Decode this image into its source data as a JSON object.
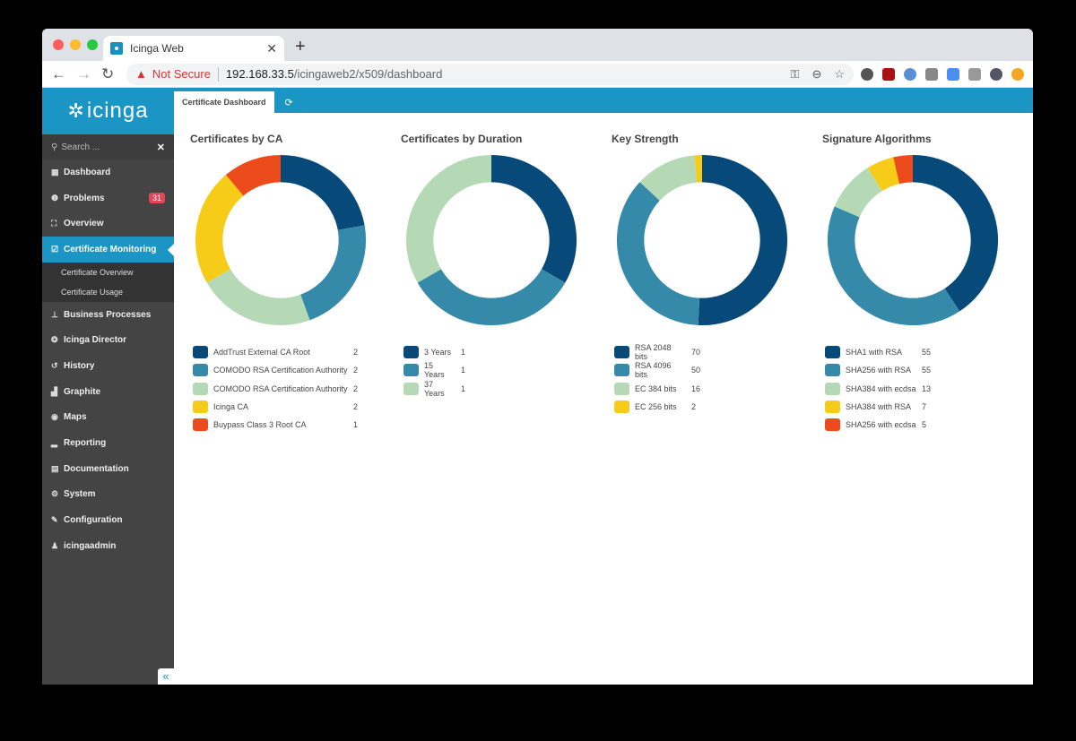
{
  "browser": {
    "tab_title": "Icinga Web",
    "url_security": "Not Secure",
    "url_host": "192.168.33.5",
    "url_path": "/icingaweb2/x509/dashboard"
  },
  "sidebar": {
    "logo": "icinga",
    "search_placeholder": "Search ...",
    "items": [
      {
        "label": "Dashboard",
        "icon": "grid-icon"
      },
      {
        "label": "Problems",
        "icon": "alert-icon",
        "badge": "31"
      },
      {
        "label": "Overview",
        "icon": "binoculars-icon"
      },
      {
        "label": "Certificate Monitoring",
        "icon": "check-icon",
        "active": true
      },
      {
        "label": "Business Processes",
        "icon": "sitemap-icon"
      },
      {
        "label": "Icinga Director",
        "icon": "director-icon"
      },
      {
        "label": "History",
        "icon": "history-icon"
      },
      {
        "label": "Graphite",
        "icon": "chart-icon"
      },
      {
        "label": "Maps",
        "icon": "globe-icon"
      },
      {
        "label": "Reporting",
        "icon": "bars-icon"
      },
      {
        "label": "Documentation",
        "icon": "book-icon"
      },
      {
        "label": "System",
        "icon": "cogs-icon"
      },
      {
        "label": "Configuration",
        "icon": "wrench-icon"
      },
      {
        "label": "icingaadmin",
        "icon": "user-icon"
      }
    ],
    "subitems": [
      "Certificate Overview",
      "Certificate Usage"
    ]
  },
  "main": {
    "tab_label": "Certificate Dashboard"
  },
  "colors": [
    "#074a7a",
    "#368aa9",
    "#b6d9b5",
    "#f6cc18",
    "#ec4c1c"
  ],
  "chart_data": [
    {
      "type": "pie",
      "title": "Certificates by CA",
      "categories": [
        "AddTrust External CA Root",
        "COMODO RSA Certification Authority",
        "COMODO RSA Certification Authority",
        "Icinga CA",
        "Buypass Class 3 Root CA"
      ],
      "values": [
        2,
        2,
        2,
        2,
        1
      ]
    },
    {
      "type": "pie",
      "title": "Certificates by Duration",
      "categories": [
        "3 Years",
        "15 Years",
        "37 Years"
      ],
      "values": [
        1,
        1,
        1
      ]
    },
    {
      "type": "pie",
      "title": "Key Strength",
      "categories": [
        "RSA 2048 bits",
        "RSA 4096 bits",
        "EC 384 bits",
        "EC 256 bits"
      ],
      "values": [
        70,
        50,
        16,
        2
      ]
    },
    {
      "type": "pie",
      "title": "Signature Algorithms",
      "categories": [
        "SHA1 with RSA",
        "SHA256 with RSA",
        "SHA384 with ecdsa",
        "SHA384 with RSA",
        "SHA256 with ecdsa"
      ],
      "values": [
        55,
        55,
        13,
        7,
        5
      ]
    }
  ]
}
